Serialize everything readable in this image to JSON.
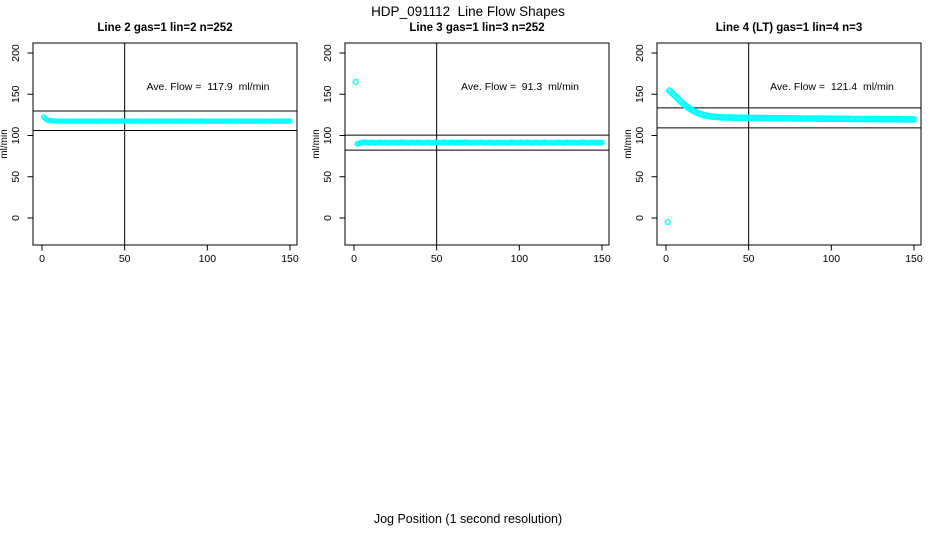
{
  "page": {
    "title": "HDP_091112  Line Flow Shapes",
    "xlabel_bottom": "Jog Position (1 second resolution)"
  },
  "colors": {
    "data_point": "#00FFFF",
    "axis": "#000000",
    "background": "#FFFFFF"
  },
  "chart_data": [
    {
      "type": "scatter",
      "title": "Line 2 gas=1 lin=2 n=252",
      "annotation": "Ave. Flow =  117.9  ml/min",
      "ave_flow_ml_min": 117.9,
      "n": 252,
      "ylabel": "ml/min",
      "xlim": [
        0,
        150
      ],
      "ylim": [
        0,
        200
      ],
      "xticks": [
        0,
        50,
        100,
        150
      ],
      "yticks": [
        0,
        50,
        100,
        150,
        200
      ],
      "vline_x": 50,
      "hlines": [
        129.7,
        106.1
      ],
      "marker": "open-circle",
      "point_radius": 2.0,
      "outliers": [],
      "points": [
        [
          1,
          122.5
        ],
        [
          3,
          118.9
        ],
        [
          5,
          118.1
        ],
        [
          7,
          117.8
        ],
        [
          9,
          117.5
        ],
        [
          11,
          117.3
        ],
        [
          13,
          117.6
        ],
        [
          15,
          117.4
        ],
        [
          17,
          117.7
        ],
        [
          19,
          117.3
        ],
        [
          21,
          117.5
        ],
        [
          23,
          117.6
        ],
        [
          25,
          117.3
        ],
        [
          27,
          117.5
        ],
        [
          29,
          117.4
        ],
        [
          31,
          117.6
        ],
        [
          33,
          117.3
        ],
        [
          35,
          117.5
        ],
        [
          37,
          117.7
        ],
        [
          39,
          117.4
        ],
        [
          41,
          117.3
        ],
        [
          43,
          117.6
        ],
        [
          45,
          117.5
        ],
        [
          47,
          117.3
        ],
        [
          49,
          117.6
        ],
        [
          51,
          117.4
        ],
        [
          53,
          117.5
        ],
        [
          55,
          117.3
        ],
        [
          57,
          117.7
        ],
        [
          59,
          117.5
        ],
        [
          61,
          117.3
        ],
        [
          63,
          117.6
        ],
        [
          65,
          117.4
        ],
        [
          67,
          117.5
        ],
        [
          69,
          117.3
        ],
        [
          71,
          117.6
        ],
        [
          73,
          117.5
        ],
        [
          75,
          117.4
        ],
        [
          77,
          117.7
        ],
        [
          79,
          117.3
        ],
        [
          81,
          117.5
        ],
        [
          83,
          117.6
        ],
        [
          85,
          117.3
        ],
        [
          87,
          117.5
        ],
        [
          89,
          117.4
        ],
        [
          91,
          117.6
        ],
        [
          93,
          117.3
        ],
        [
          95,
          117.5
        ],
        [
          97,
          117.7
        ],
        [
          99,
          117.4
        ],
        [
          101,
          117.3
        ],
        [
          103,
          117.6
        ],
        [
          105,
          117.5
        ],
        [
          107,
          117.3
        ],
        [
          109,
          117.6
        ],
        [
          111,
          117.4
        ],
        [
          113,
          117.5
        ],
        [
          115,
          117.3
        ],
        [
          117,
          117.7
        ],
        [
          119,
          117.5
        ],
        [
          121,
          117.3
        ],
        [
          123,
          117.6
        ],
        [
          125,
          117.4
        ],
        [
          127,
          117.5
        ],
        [
          129,
          117.3
        ],
        [
          131,
          117.6
        ],
        [
          133,
          117.5
        ],
        [
          135,
          117.4
        ],
        [
          137,
          117.7
        ],
        [
          139,
          117.3
        ],
        [
          141,
          117.5
        ],
        [
          143,
          117.6
        ],
        [
          145,
          117.3
        ],
        [
          147,
          117.5
        ],
        [
          149,
          117.4
        ],
        [
          150,
          117.5
        ]
      ]
    },
    {
      "type": "scatter",
      "title": "Line 3 gas=1 lin=3 n=252",
      "annotation": "Ave. Flow =  91.3  ml/min",
      "ave_flow_ml_min": 91.3,
      "n": 252,
      "ylabel": "ml/min",
      "xlim": [
        0,
        150
      ],
      "ylim": [
        0,
        200
      ],
      "xticks": [
        0,
        50,
        100,
        150
      ],
      "yticks": [
        0,
        50,
        100,
        150,
        200
      ],
      "vline_x": 50,
      "hlines": [
        100.4,
        82.2
      ],
      "marker": "open-circle",
      "point_radius": 2.2,
      "outliers": [
        [
          1,
          165
        ]
      ],
      "points": [
        [
          2,
          89.8
        ],
        [
          3,
          90.6
        ],
        [
          4,
          91.0
        ],
        [
          5,
          91.5
        ],
        [
          7,
          91.8
        ],
        [
          9,
          91.3
        ],
        [
          11,
          91.6
        ],
        [
          13,
          91.2
        ],
        [
          15,
          91.7
        ],
        [
          17,
          91.4
        ],
        [
          19,
          91.6
        ],
        [
          21,
          91.3
        ],
        [
          23,
          91.5
        ],
        [
          25,
          91.6
        ],
        [
          27,
          91.3
        ],
        [
          29,
          91.8
        ],
        [
          31,
          91.5
        ],
        [
          33,
          91.2
        ],
        [
          35,
          91.6
        ],
        [
          37,
          91.4
        ],
        [
          39,
          91.7
        ],
        [
          41,
          91.3
        ],
        [
          43,
          91.5
        ],
        [
          45,
          91.6
        ],
        [
          47,
          91.2
        ],
        [
          49,
          91.7
        ],
        [
          51,
          91.4
        ],
        [
          53,
          91.5
        ],
        [
          55,
          91.8
        ],
        [
          57,
          91.3
        ],
        [
          59,
          91.6
        ],
        [
          61,
          91.4
        ],
        [
          63,
          91.5
        ],
        [
          65,
          91.2
        ],
        [
          67,
          91.7
        ],
        [
          69,
          91.5
        ],
        [
          71,
          91.3
        ],
        [
          73,
          91.6
        ],
        [
          75,
          91.4
        ],
        [
          77,
          91.8
        ],
        [
          79,
          91.3
        ],
        [
          81,
          91.5
        ],
        [
          83,
          91.6
        ],
        [
          85,
          91.2
        ],
        [
          87,
          91.7
        ],
        [
          89,
          91.4
        ],
        [
          91,
          91.5
        ],
        [
          93,
          91.3
        ],
        [
          95,
          91.8
        ],
        [
          97,
          91.5
        ],
        [
          99,
          91.2
        ],
        [
          101,
          91.6
        ],
        [
          103,
          91.4
        ],
        [
          105,
          91.7
        ],
        [
          107,
          91.3
        ],
        [
          109,
          91.5
        ],
        [
          111,
          91.6
        ],
        [
          113,
          91.2
        ],
        [
          115,
          91.8
        ],
        [
          117,
          91.4
        ],
        [
          119,
          91.5
        ],
        [
          121,
          91.3
        ],
        [
          123,
          91.6
        ],
        [
          125,
          91.5
        ],
        [
          127,
          91.2
        ],
        [
          129,
          91.7
        ],
        [
          131,
          91.4
        ],
        [
          133,
          91.6
        ],
        [
          135,
          91.3
        ],
        [
          137,
          91.5
        ],
        [
          139,
          91.8
        ],
        [
          141,
          91.2
        ],
        [
          143,
          91.6
        ],
        [
          145,
          91.4
        ],
        [
          147,
          91.5
        ],
        [
          149,
          91.3
        ],
        [
          150,
          91.5
        ]
      ]
    },
    {
      "type": "scatter",
      "title": "Line 4 (LT) gas=1 lin=4 n=3",
      "annotation": "Ave. Flow =  121.4  ml/min",
      "ave_flow_ml_min": 121.4,
      "n": 3,
      "ylabel": "ml/min",
      "xlim": [
        0,
        150
      ],
      "ylim": [
        0,
        200
      ],
      "xticks": [
        0,
        50,
        100,
        150
      ],
      "yticks": [
        0,
        50,
        100,
        150,
        200
      ],
      "vline_x": 50,
      "hlines": [
        133.5,
        109.3
      ],
      "marker": "open-circle",
      "point_radius": 2.6,
      "outliers": [
        [
          1,
          -5
        ]
      ],
      "points": [
        [
          2,
          154.5
        ],
        [
          3,
          153.0
        ],
        [
          4,
          150.8
        ],
        [
          5,
          148.8
        ],
        [
          6,
          146.9
        ],
        [
          7,
          145.2
        ],
        [
          8,
          143.0
        ],
        [
          9,
          141.0
        ],
        [
          10,
          139.2
        ],
        [
          12,
          135.8
        ],
        [
          14,
          132.9
        ],
        [
          16,
          130.4
        ],
        [
          18,
          128.3
        ],
        [
          20,
          126.6
        ],
        [
          22,
          125.3
        ],
        [
          24,
          124.3
        ],
        [
          26,
          123.5
        ],
        [
          28,
          122.9
        ],
        [
          30,
          122.5
        ],
        [
          32,
          122.2
        ],
        [
          34,
          122.0
        ],
        [
          36,
          121.8
        ],
        [
          38,
          121.7
        ],
        [
          40,
          121.6
        ],
        [
          42,
          121.5
        ],
        [
          44,
          121.5
        ],
        [
          46,
          121.4
        ],
        [
          48,
          121.4
        ],
        [
          50,
          121.3
        ],
        [
          52,
          121.3
        ],
        [
          54,
          121.2
        ],
        [
          56,
          121.3
        ],
        [
          58,
          121.1
        ],
        [
          60,
          121.2
        ],
        [
          62,
          121.0
        ],
        [
          64,
          121.1
        ],
        [
          66,
          121.0
        ],
        [
          68,
          120.9
        ],
        [
          70,
          121.0
        ],
        [
          72,
          120.8
        ],
        [
          74,
          120.9
        ],
        [
          76,
          120.8
        ],
        [
          78,
          120.7
        ],
        [
          80,
          120.8
        ],
        [
          82,
          120.6
        ],
        [
          84,
          120.7
        ],
        [
          86,
          120.6
        ],
        [
          88,
          120.5
        ],
        [
          90,
          120.6
        ],
        [
          92,
          120.4
        ],
        [
          94,
          120.5
        ],
        [
          96,
          120.4
        ],
        [
          98,
          120.3
        ],
        [
          100,
          120.4
        ],
        [
          102,
          120.3
        ],
        [
          104,
          120.2
        ],
        [
          106,
          120.3
        ],
        [
          108,
          120.1
        ],
        [
          110,
          120.2
        ],
        [
          112,
          120.1
        ],
        [
          114,
          120.0
        ],
        [
          116,
          120.1
        ],
        [
          118,
          120.0
        ],
        [
          120,
          119.9
        ],
        [
          122,
          120.0
        ],
        [
          124,
          119.9
        ],
        [
          126,
          119.8
        ],
        [
          128,
          119.9
        ],
        [
          130,
          119.8
        ],
        [
          132,
          119.7
        ],
        [
          134,
          119.8
        ],
        [
          136,
          119.7
        ],
        [
          138,
          119.6
        ],
        [
          140,
          119.7
        ],
        [
          142,
          119.6
        ],
        [
          144,
          119.5
        ],
        [
          146,
          119.6
        ],
        [
          148,
          119.5
        ],
        [
          150,
          119.5
        ]
      ]
    }
  ]
}
